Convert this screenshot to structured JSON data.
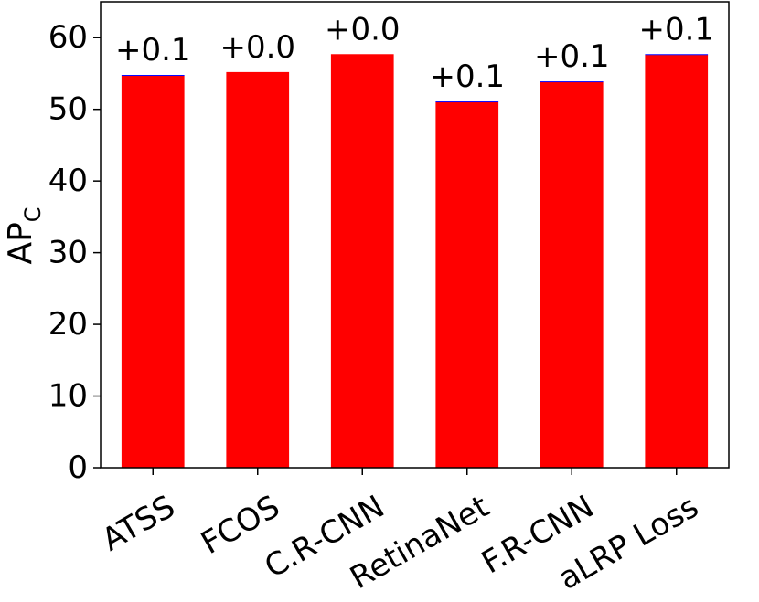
{
  "chart_data": {
    "type": "bar",
    "categories": [
      "ATSS",
      "FCOS",
      "C.R-CNN",
      "RetinaNet",
      "F.R-CNN",
      "aLRP Loss"
    ],
    "series": [
      {
        "values": [
          54.7,
          55.2,
          57.7,
          51.0,
          53.8,
          57.6
        ],
        "color": "#ff0000"
      },
      {
        "values": [
          0.1,
          0.0,
          0.0,
          0.1,
          0.1,
          0.1
        ],
        "color": "#0000ff"
      }
    ],
    "data_labels": [
      "+0.1",
      "+0.0",
      "+0.0",
      "+0.1",
      "+0.1",
      "+0.1"
    ],
    "ylabel": "AP",
    "ylabel_subscript": "C",
    "ylim": [
      0,
      65
    ],
    "yticks": [
      0,
      10,
      20,
      30,
      40,
      50,
      60
    ],
    "xtick_rotation": -30,
    "grid": false,
    "legend": "none"
  }
}
